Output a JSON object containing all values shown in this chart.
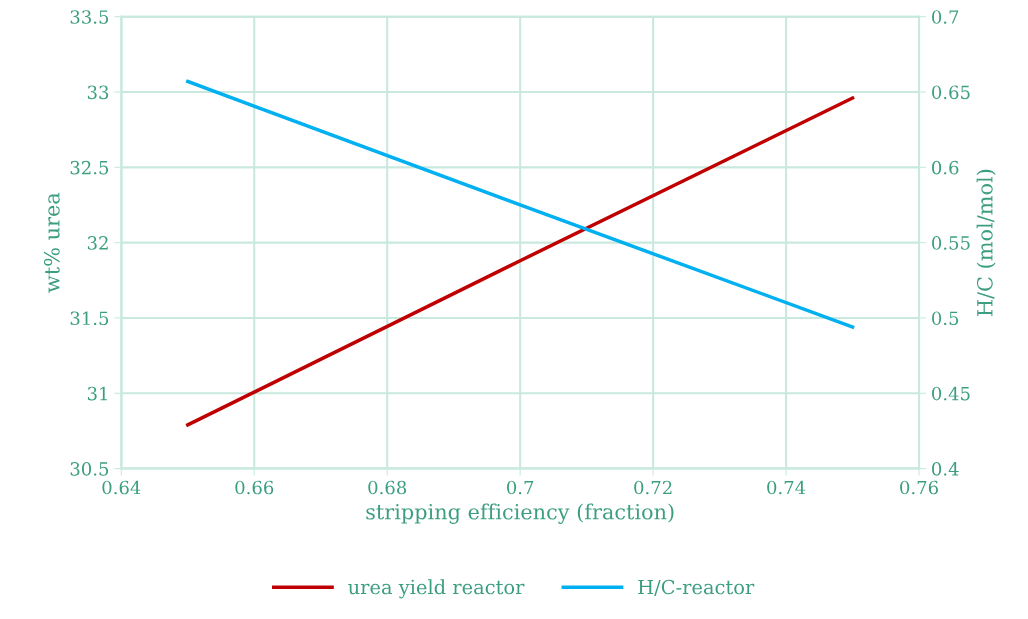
{
  "chart_data": {
    "type": "line",
    "xlabel": "stripping efficiency (fraction)",
    "ylabel": "wt% urea",
    "y2label": "H/C (mol/mol)",
    "x": [
      0.65,
      0.7,
      0.75
    ],
    "series": [
      {
        "name": "urea yield reactor",
        "color": "#c00000",
        "values": [
          30.79,
          31.88,
          32.96
        ]
      },
      {
        "name": "H/C-reactor",
        "color": "#00b0f0",
        "values": [
          0.657,
          0.575,
          0.494
        ],
        "axis": "y2"
      }
    ],
    "xlim": [
      0.64,
      0.76
    ],
    "xticks": [
      0.64,
      0.66,
      0.68,
      0.7,
      0.72,
      0.74,
      0.76
    ],
    "ylim": [
      30.5,
      33.5
    ],
    "yticks": [
      30.5,
      31,
      31.5,
      32,
      32.5,
      33,
      33.5
    ],
    "y2lim": [
      0.4,
      0.7
    ],
    "y2ticks": [
      0.4,
      0.45,
      0.5,
      0.55,
      0.6,
      0.65,
      0.7
    ],
    "grid": true,
    "legend": "bottom",
    "marker": "none",
    "line_style": "solid"
  }
}
